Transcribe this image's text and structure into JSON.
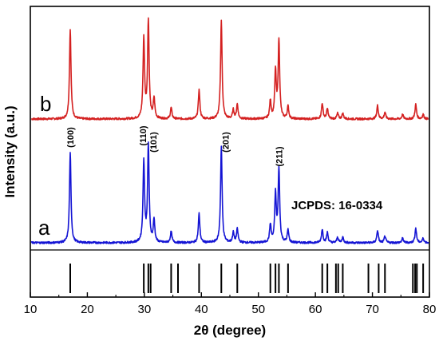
{
  "chart_data": {
    "type": "line",
    "xlabel": "2θ (degree)",
    "ylabel": "Intensity (a.u.)",
    "xlim": [
      10,
      80
    ],
    "xticks": [
      "10",
      "20",
      "30",
      "40",
      "50",
      "60",
      "70",
      "80"
    ],
    "colors": {
      "b": "#d42020",
      "a": "#1414d4",
      "reference": "#000000",
      "frame": "#000000"
    },
    "series": [
      {
        "name": "b",
        "peaks": [
          {
            "x": 17.0,
            "h": 0.8
          },
          {
            "x": 29.9,
            "h": 0.72
          },
          {
            "x": 30.7,
            "h": 0.88
          },
          {
            "x": 31.7,
            "h": 0.18
          },
          {
            "x": 34.7,
            "h": 0.1
          },
          {
            "x": 39.6,
            "h": 0.26
          },
          {
            "x": 43.5,
            "h": 0.88
          },
          {
            "x": 45.6,
            "h": 0.08
          },
          {
            "x": 46.3,
            "h": 0.13
          },
          {
            "x": 52.1,
            "h": 0.16
          },
          {
            "x": 53.0,
            "h": 0.42
          },
          {
            "x": 53.6,
            "h": 0.7
          },
          {
            "x": 55.2,
            "h": 0.11
          },
          {
            "x": 61.2,
            "h": 0.14
          },
          {
            "x": 62.1,
            "h": 0.09
          },
          {
            "x": 63.9,
            "h": 0.05
          },
          {
            "x": 64.8,
            "h": 0.05
          },
          {
            "x": 70.9,
            "h": 0.12
          },
          {
            "x": 72.2,
            "h": 0.06
          },
          {
            "x": 75.3,
            "h": 0.04
          },
          {
            "x": 77.6,
            "h": 0.13
          },
          {
            "x": 78.9,
            "h": 0.04
          }
        ]
      },
      {
        "name": "a",
        "peaks": [
          {
            "x": 17.0,
            "h": 0.8
          },
          {
            "x": 29.9,
            "h": 0.73
          },
          {
            "x": 30.7,
            "h": 0.87
          },
          {
            "x": 31.7,
            "h": 0.2
          },
          {
            "x": 34.7,
            "h": 0.1
          },
          {
            "x": 39.6,
            "h": 0.26
          },
          {
            "x": 43.5,
            "h": 0.86
          },
          {
            "x": 45.6,
            "h": 0.09
          },
          {
            "x": 46.3,
            "h": 0.12
          },
          {
            "x": 52.1,
            "h": 0.16
          },
          {
            "x": 53.0,
            "h": 0.43
          },
          {
            "x": 53.6,
            "h": 0.66
          },
          {
            "x": 55.2,
            "h": 0.11
          },
          {
            "x": 61.2,
            "h": 0.12
          },
          {
            "x": 62.1,
            "h": 0.09
          },
          {
            "x": 63.9,
            "h": 0.05
          },
          {
            "x": 64.8,
            "h": 0.05
          },
          {
            "x": 70.9,
            "h": 0.11
          },
          {
            "x": 72.2,
            "h": 0.06
          },
          {
            "x": 75.3,
            "h": 0.04
          },
          {
            "x": 77.6,
            "h": 0.13
          },
          {
            "x": 78.9,
            "h": 0.04
          }
        ]
      }
    ],
    "reference": {
      "label": "JCPDS: 16-0334",
      "lines": [
        17.0,
        29.9,
        30.7,
        31.1,
        34.7,
        35.9,
        39.6,
        43.5,
        46.3,
        52.1,
        53.0,
        53.6,
        55.2,
        61.2,
        62.1,
        63.6,
        64.0,
        64.8,
        69.3,
        71.1,
        72.2,
        77.1,
        77.5,
        77.8,
        78.9
      ]
    },
    "annotations": [
      {
        "text": "(100)",
        "x": 17.0
      },
      {
        "text": "(110)",
        "x": 29.9
      },
      {
        "text": "(101)",
        "x": 31.0
      },
      {
        "text": "(201)",
        "x": 43.5
      },
      {
        "text": "(211)",
        "x": 53.6
      }
    ]
  }
}
